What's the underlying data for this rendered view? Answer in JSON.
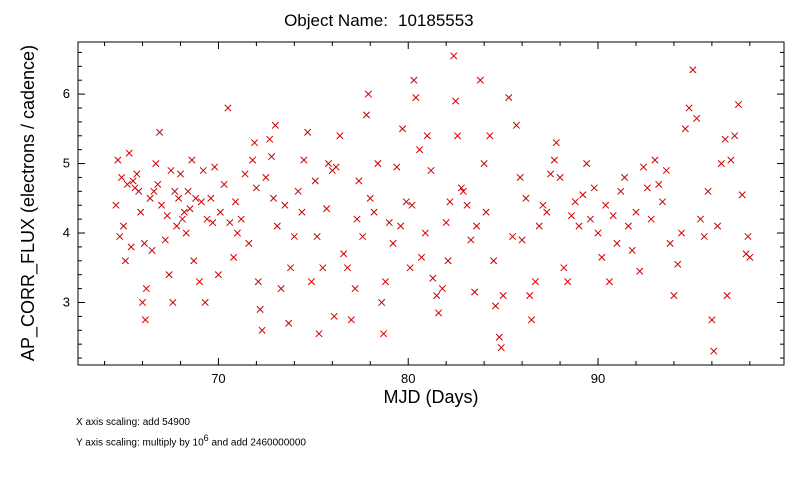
{
  "chart_data": {
    "type": "scatter",
    "title_label": "Object Name:",
    "title_value": "10185553",
    "xlabel": "MJD (Days)",
    "ylabel": "AP_CORR_FLUX (electrons / cadence)",
    "xlim": [
      62.6,
      99.8
    ],
    "ylim": [
      2.1,
      6.75
    ],
    "xticks": [
      70,
      80,
      90
    ],
    "yticks": [
      3,
      4,
      5,
      6
    ],
    "marker": "x",
    "grid": false,
    "legend": "none",
    "color": "#cc0000",
    "points": [
      [
        64.6,
        4.4
      ],
      [
        64.7,
        5.05
      ],
      [
        64.8,
        3.95
      ],
      [
        64.9,
        4.8
      ],
      [
        65.0,
        4.1
      ],
      [
        65.1,
        3.6
      ],
      [
        65.2,
        4.7
      ],
      [
        65.3,
        5.15
      ],
      [
        65.4,
        3.8
      ],
      [
        65.5,
        4.75
      ],
      [
        65.6,
        4.65
      ],
      [
        65.7,
        4.85
      ],
      [
        65.8,
        4.6
      ],
      [
        65.9,
        4.3
      ],
      [
        66.0,
        3.0
      ],
      [
        66.1,
        3.85
      ],
      [
        66.15,
        2.75
      ],
      [
        66.2,
        3.2
      ],
      [
        66.4,
        4.5
      ],
      [
        66.5,
        3.75
      ],
      [
        66.6,
        4.6
      ],
      [
        66.7,
        5.0
      ],
      [
        66.8,
        4.7
      ],
      [
        66.9,
        5.45
      ],
      [
        67.0,
        4.4
      ],
      [
        67.2,
        3.9
      ],
      [
        67.3,
        4.25
      ],
      [
        67.4,
        3.4
      ],
      [
        67.5,
        4.9
      ],
      [
        67.6,
        3.0
      ],
      [
        67.7,
        4.6
      ],
      [
        67.8,
        4.1
      ],
      [
        67.9,
        4.5
      ],
      [
        68.0,
        4.85
      ],
      [
        68.1,
        4.2
      ],
      [
        68.2,
        4.3
      ],
      [
        68.3,
        4.0
      ],
      [
        68.4,
        4.6
      ],
      [
        68.5,
        4.35
      ],
      [
        68.6,
        5.05
      ],
      [
        68.7,
        3.6
      ],
      [
        68.8,
        4.5
      ],
      [
        69.0,
        3.3
      ],
      [
        69.1,
        4.45
      ],
      [
        69.2,
        4.9
      ],
      [
        69.3,
        3.0
      ],
      [
        69.4,
        4.2
      ],
      [
        69.6,
        4.5
      ],
      [
        69.7,
        4.15
      ],
      [
        69.8,
        4.95
      ],
      [
        70.0,
        3.4
      ],
      [
        70.1,
        4.3
      ],
      [
        70.3,
        4.7
      ],
      [
        70.5,
        5.8
      ],
      [
        70.6,
        4.15
      ],
      [
        70.8,
        3.65
      ],
      [
        70.9,
        4.45
      ],
      [
        71.0,
        4.0
      ],
      [
        71.2,
        4.2
      ],
      [
        71.4,
        4.85
      ],
      [
        71.6,
        3.85
      ],
      [
        71.8,
        5.05
      ],
      [
        71.9,
        5.3
      ],
      [
        72.0,
        4.65
      ],
      [
        72.1,
        3.3
      ],
      [
        72.2,
        2.9
      ],
      [
        72.3,
        2.6
      ],
      [
        72.5,
        4.8
      ],
      [
        72.7,
        5.35
      ],
      [
        72.8,
        5.1
      ],
      [
        72.9,
        4.5
      ],
      [
        73.0,
        5.55
      ],
      [
        73.1,
        4.1
      ],
      [
        73.3,
        3.2
      ],
      [
        73.5,
        4.4
      ],
      [
        73.7,
        2.7
      ],
      [
        73.8,
        3.5
      ],
      [
        74.0,
        3.95
      ],
      [
        74.2,
        4.6
      ],
      [
        74.4,
        4.3
      ],
      [
        74.5,
        5.05
      ],
      [
        74.7,
        5.45
      ],
      [
        74.9,
        3.3
      ],
      [
        75.1,
        4.75
      ],
      [
        75.2,
        3.95
      ],
      [
        75.3,
        2.55
      ],
      [
        75.5,
        3.5
      ],
      [
        75.7,
        4.35
      ],
      [
        75.8,
        5.0
      ],
      [
        76.0,
        4.9
      ],
      [
        76.1,
        2.8
      ],
      [
        76.2,
        4.95
      ],
      [
        76.4,
        5.4
      ],
      [
        76.6,
        3.7
      ],
      [
        76.8,
        3.5
      ],
      [
        77.0,
        2.75
      ],
      [
        77.2,
        3.2
      ],
      [
        77.3,
        4.2
      ],
      [
        77.4,
        4.75
      ],
      [
        77.6,
        3.95
      ],
      [
        77.8,
        5.7
      ],
      [
        77.9,
        6.0
      ],
      [
        78.0,
        4.5
      ],
      [
        78.2,
        4.3
      ],
      [
        78.4,
        5.0
      ],
      [
        78.6,
        3.0
      ],
      [
        78.7,
        2.55
      ],
      [
        78.8,
        3.3
      ],
      [
        79.0,
        4.15
      ],
      [
        79.2,
        3.85
      ],
      [
        79.4,
        4.95
      ],
      [
        79.6,
        4.1
      ],
      [
        79.7,
        5.5
      ],
      [
        79.9,
        4.45
      ],
      [
        80.1,
        3.5
      ],
      [
        80.2,
        4.4
      ],
      [
        80.3,
        6.2
      ],
      [
        80.4,
        5.95
      ],
      [
        80.6,
        5.2
      ],
      [
        80.7,
        3.65
      ],
      [
        80.9,
        4.0
      ],
      [
        81.0,
        5.4
      ],
      [
        81.2,
        4.9
      ],
      [
        81.3,
        3.35
      ],
      [
        81.5,
        3.1
      ],
      [
        81.6,
        2.85
      ],
      [
        81.8,
        3.2
      ],
      [
        82.0,
        4.15
      ],
      [
        82.1,
        3.6
      ],
      [
        82.2,
        4.45
      ],
      [
        82.4,
        6.55
      ],
      [
        82.5,
        5.9
      ],
      [
        82.6,
        5.4
      ],
      [
        82.8,
        4.65
      ],
      [
        82.9,
        4.6
      ],
      [
        83.1,
        4.4
      ],
      [
        83.3,
        3.9
      ],
      [
        83.5,
        3.15
      ],
      [
        83.6,
        4.1
      ],
      [
        83.8,
        6.2
      ],
      [
        84.0,
        5.0
      ],
      [
        84.1,
        4.3
      ],
      [
        84.3,
        5.4
      ],
      [
        84.5,
        3.6
      ],
      [
        84.6,
        2.95
      ],
      [
        84.8,
        2.5
      ],
      [
        84.9,
        2.35
      ],
      [
        85.0,
        3.1
      ],
      [
        85.3,
        5.95
      ],
      [
        85.5,
        3.95
      ],
      [
        85.7,
        5.55
      ],
      [
        85.9,
        4.8
      ],
      [
        86.0,
        3.9
      ],
      [
        86.2,
        4.5
      ],
      [
        86.4,
        3.1
      ],
      [
        86.5,
        2.75
      ],
      [
        86.7,
        3.3
      ],
      [
        86.9,
        4.1
      ],
      [
        87.1,
        4.4
      ],
      [
        87.3,
        4.3
      ],
      [
        87.5,
        4.85
      ],
      [
        87.7,
        5.05
      ],
      [
        87.8,
        5.3
      ],
      [
        88.0,
        4.8
      ],
      [
        88.2,
        3.5
      ],
      [
        88.4,
        3.3
      ],
      [
        88.6,
        4.25
      ],
      [
        88.8,
        4.45
      ],
      [
        89.0,
        4.1
      ],
      [
        89.2,
        4.55
      ],
      [
        89.4,
        5.0
      ],
      [
        89.6,
        4.2
      ],
      [
        89.8,
        4.65
      ],
      [
        90.0,
        4.0
      ],
      [
        90.2,
        3.65
      ],
      [
        90.4,
        4.4
      ],
      [
        90.6,
        3.3
      ],
      [
        90.8,
        4.25
      ],
      [
        91.0,
        3.85
      ],
      [
        91.2,
        4.6
      ],
      [
        91.4,
        4.8
      ],
      [
        91.6,
        4.1
      ],
      [
        91.8,
        3.75
      ],
      [
        92.0,
        4.3
      ],
      [
        92.2,
        3.45
      ],
      [
        92.4,
        4.95
      ],
      [
        92.6,
        4.65
      ],
      [
        92.8,
        4.2
      ],
      [
        93.0,
        5.05
      ],
      [
        93.2,
        4.7
      ],
      [
        93.4,
        4.45
      ],
      [
        93.6,
        4.9
      ],
      [
        93.8,
        3.85
      ],
      [
        94.0,
        3.1
      ],
      [
        94.2,
        3.55
      ],
      [
        94.4,
        4.0
      ],
      [
        94.6,
        5.5
      ],
      [
        94.8,
        5.8
      ],
      [
        95.0,
        6.35
      ],
      [
        95.2,
        5.65
      ],
      [
        95.4,
        4.2
      ],
      [
        95.6,
        3.95
      ],
      [
        95.8,
        4.6
      ],
      [
        96.0,
        2.75
      ],
      [
        96.1,
        2.3
      ],
      [
        96.3,
        4.1
      ],
      [
        96.5,
        5.0
      ],
      [
        96.7,
        5.35
      ],
      [
        96.8,
        3.1
      ],
      [
        97.0,
        5.05
      ],
      [
        97.2,
        5.4
      ],
      [
        97.4,
        5.85
      ],
      [
        97.6,
        4.55
      ],
      [
        97.8,
        3.7
      ],
      [
        97.9,
        3.95
      ],
      [
        98.0,
        3.65
      ]
    ]
  },
  "footnotes": {
    "x_scaling": "X axis  scaling: add 54900",
    "y_scaling_prefix": "Y axis  scaling: multiply by 10",
    "y_scaling_exp": "6",
    "y_scaling_suffix": " and add 2460000000"
  }
}
